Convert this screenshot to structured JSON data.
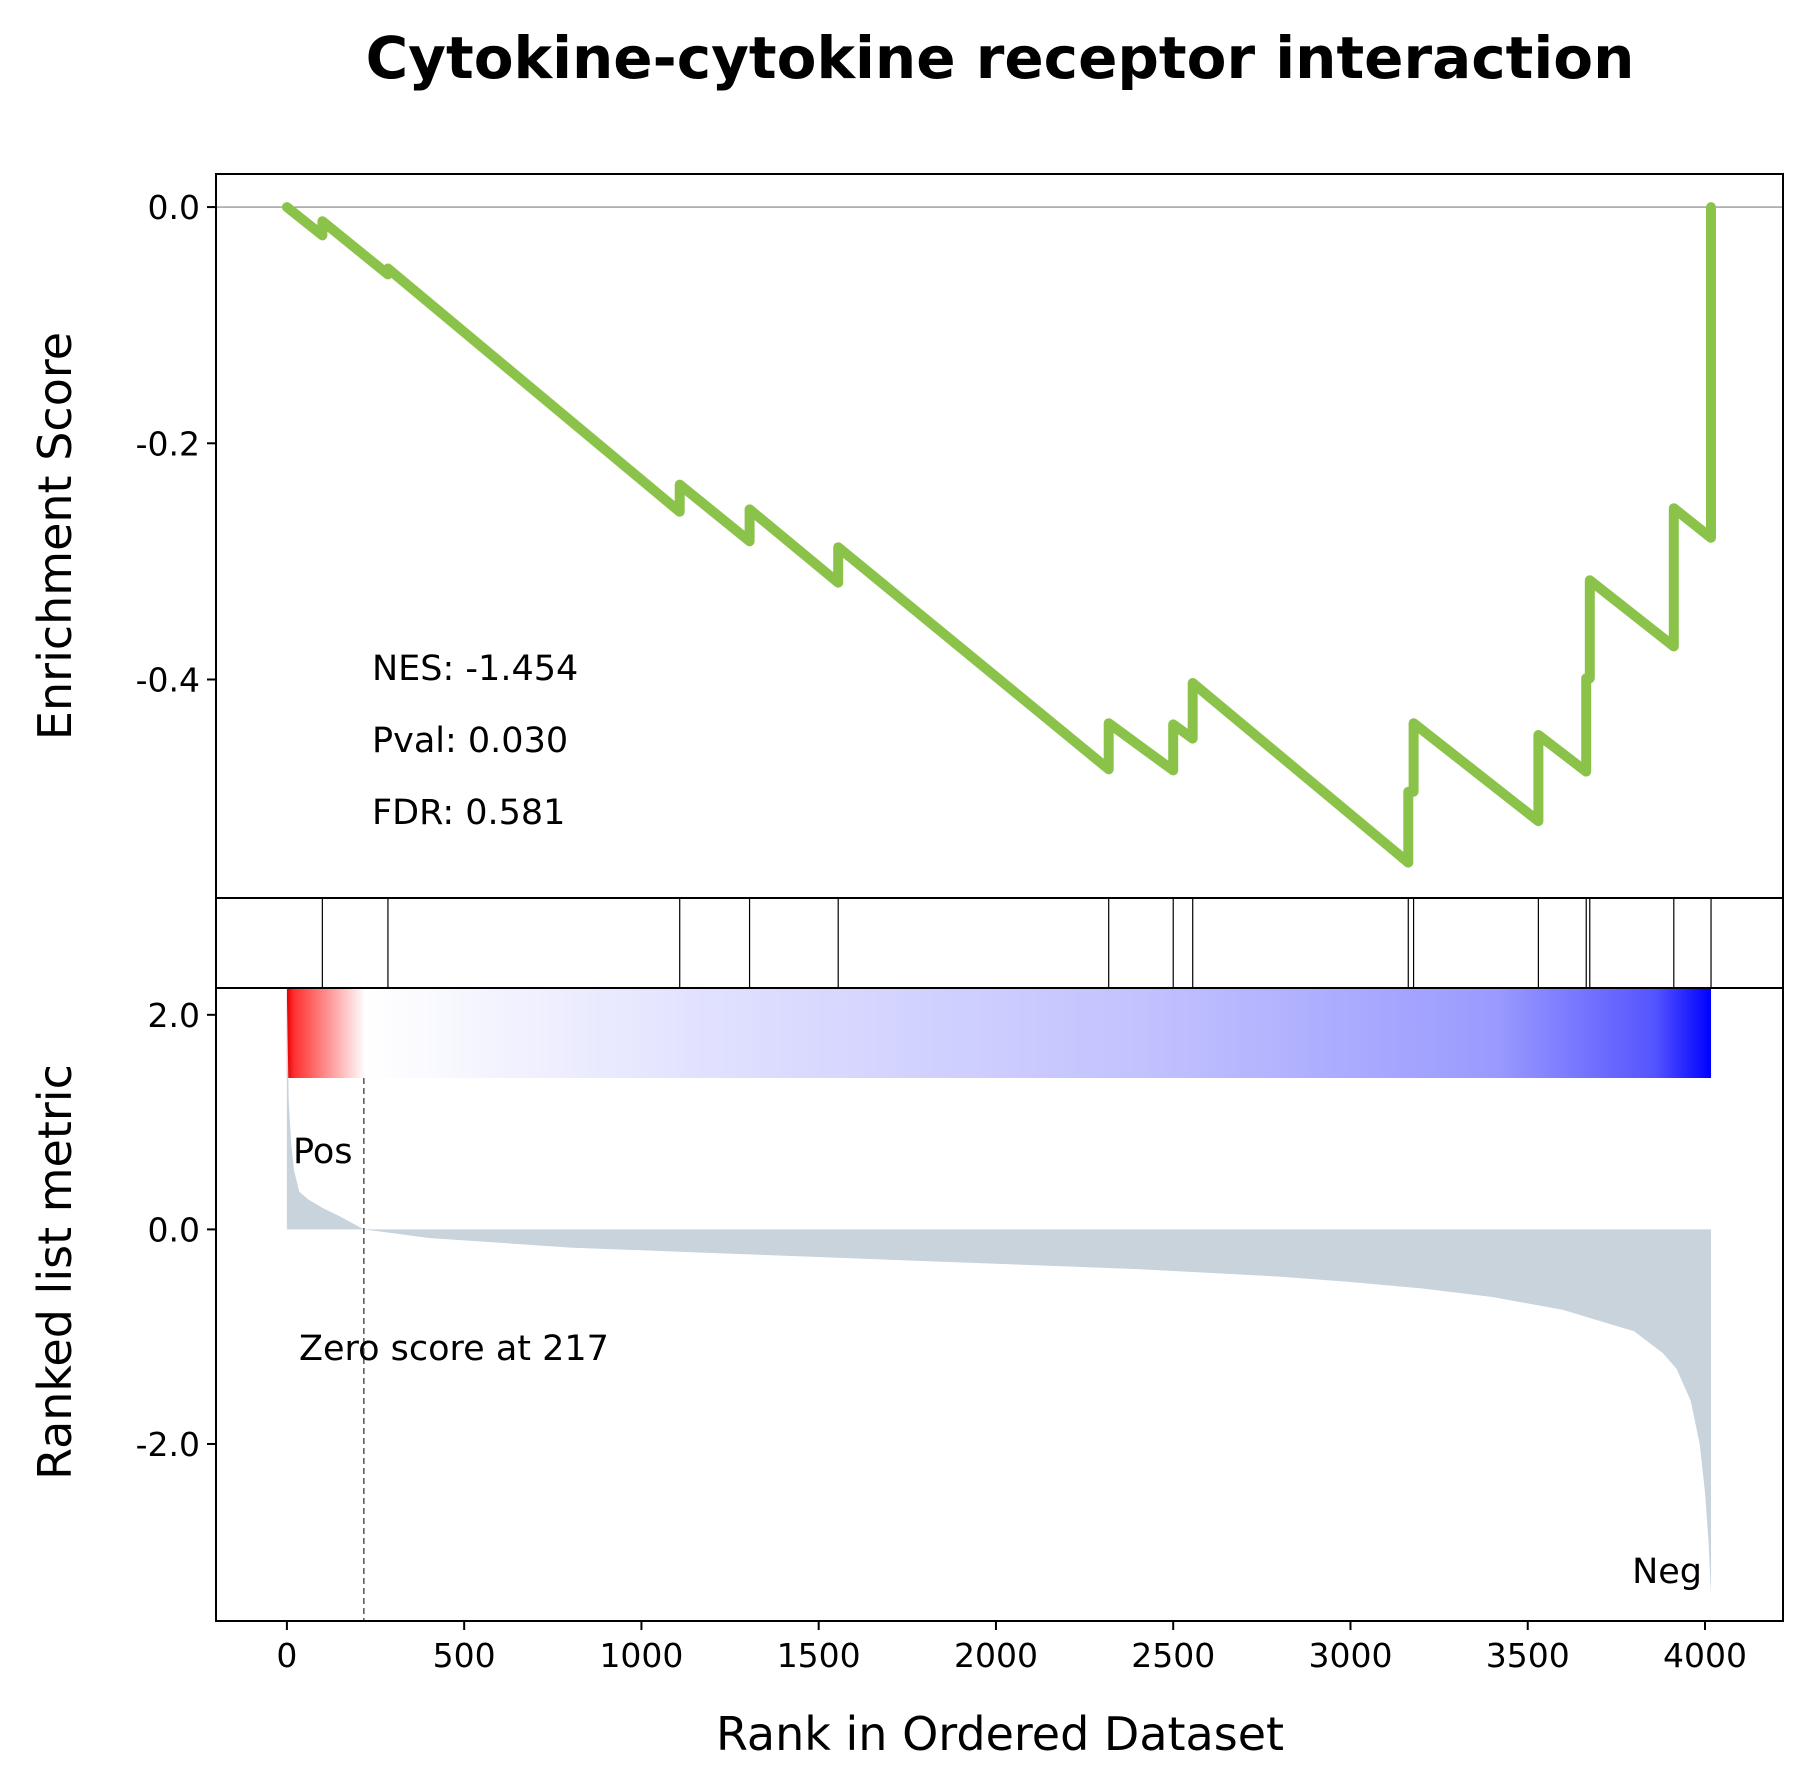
{
  "chart_data": {
    "type": "line",
    "title": "Cytokine-cytokine receptor interaction",
    "xlabel": "Rank in Ordered Dataset",
    "es_ylabel": "Enrichment Score",
    "metric_ylabel": "Ranked list metric",
    "stats": {
      "nes": "NES: -1.454",
      "pval": "Pval: 0.030",
      "fdr": "FDR: 0.581"
    },
    "zero_score_text": "Zero score at 217",
    "zero_score_rank": 217,
    "pos_label": "Pos",
    "neg_label": "Neg",
    "pos_color": "#ff0000",
    "neg_color": "#0000ff",
    "line_color": "#8bc34a",
    "fill_color": "#c8d3dc",
    "xlim": [
      -200,
      4220
    ],
    "es_ylim": [
      -0.585,
      0.028
    ],
    "metric_ylim": [
      -3.65,
      2.25
    ],
    "x_ticks": [
      0,
      500,
      1000,
      1500,
      2000,
      2500,
      3000,
      3500,
      4000
    ],
    "es_ticks": [
      {
        "value": 0.0,
        "label": "0.0"
      },
      {
        "value": -0.2,
        "label": "-0.2"
      },
      {
        "value": -0.4,
        "label": "-0.4"
      }
    ],
    "metric_ticks": [
      {
        "value": 2.0,
        "label": "2.0"
      },
      {
        "value": 0.0,
        "label": "0.0"
      },
      {
        "value": -2.0,
        "label": "-2.0"
      }
    ],
    "hits": [
      100,
      285,
      1108,
      1305,
      1555,
      2318,
      2500,
      2555,
      3163,
      3178,
      3530,
      3665,
      3675,
      3912,
      4017
    ],
    "es_points": [
      [
        0,
        0.0
      ],
      [
        100,
        -0.024
      ],
      [
        100,
        -0.012
      ],
      [
        285,
        -0.057
      ],
      [
        285,
        -0.052
      ],
      [
        1108,
        -0.258
      ],
      [
        1108,
        -0.235
      ],
      [
        1305,
        -0.283
      ],
      [
        1305,
        -0.256
      ],
      [
        1555,
        -0.318
      ],
      [
        1555,
        -0.288
      ],
      [
        2318,
        -0.476
      ],
      [
        2318,
        -0.437
      ],
      [
        2500,
        -0.477
      ],
      [
        2500,
        -0.438
      ],
      [
        2555,
        -0.45
      ],
      [
        2555,
        -0.403
      ],
      [
        3163,
        -0.555
      ],
      [
        3163,
        -0.495
      ],
      [
        3178,
        -0.495
      ],
      [
        3178,
        -0.437
      ],
      [
        3530,
        -0.52
      ],
      [
        3530,
        -0.447
      ],
      [
        3665,
        -0.478
      ],
      [
        3665,
        -0.399
      ],
      [
        3675,
        -0.399
      ],
      [
        3675,
        -0.316
      ],
      [
        3912,
        -0.372
      ],
      [
        3912,
        -0.255
      ],
      [
        4017,
        -0.28
      ],
      [
        4017,
        0.0
      ]
    ],
    "metric_points": [
      [
        0,
        2.2
      ],
      [
        5,
        1.2
      ],
      [
        12,
        0.8
      ],
      [
        20,
        0.55
      ],
      [
        35,
        0.35
      ],
      [
        60,
        0.28
      ],
      [
        100,
        0.2
      ],
      [
        150,
        0.12
      ],
      [
        217,
        0.0
      ],
      [
        400,
        -0.08
      ],
      [
        800,
        -0.17
      ],
      [
        1200,
        -0.22
      ],
      [
        1600,
        -0.27
      ],
      [
        2000,
        -0.32
      ],
      [
        2400,
        -0.37
      ],
      [
        2800,
        -0.44
      ],
      [
        3000,
        -0.49
      ],
      [
        3200,
        -0.55
      ],
      [
        3400,
        -0.63
      ],
      [
        3600,
        -0.75
      ],
      [
        3700,
        -0.85
      ],
      [
        3800,
        -0.95
      ],
      [
        3880,
        -1.15
      ],
      [
        3920,
        -1.3
      ],
      [
        3960,
        -1.6
      ],
      [
        3985,
        -2.0
      ],
      [
        4000,
        -2.45
      ],
      [
        4010,
        -2.9
      ],
      [
        4017,
        -3.4
      ],
      [
        4017,
        0.0
      ]
    ]
  }
}
